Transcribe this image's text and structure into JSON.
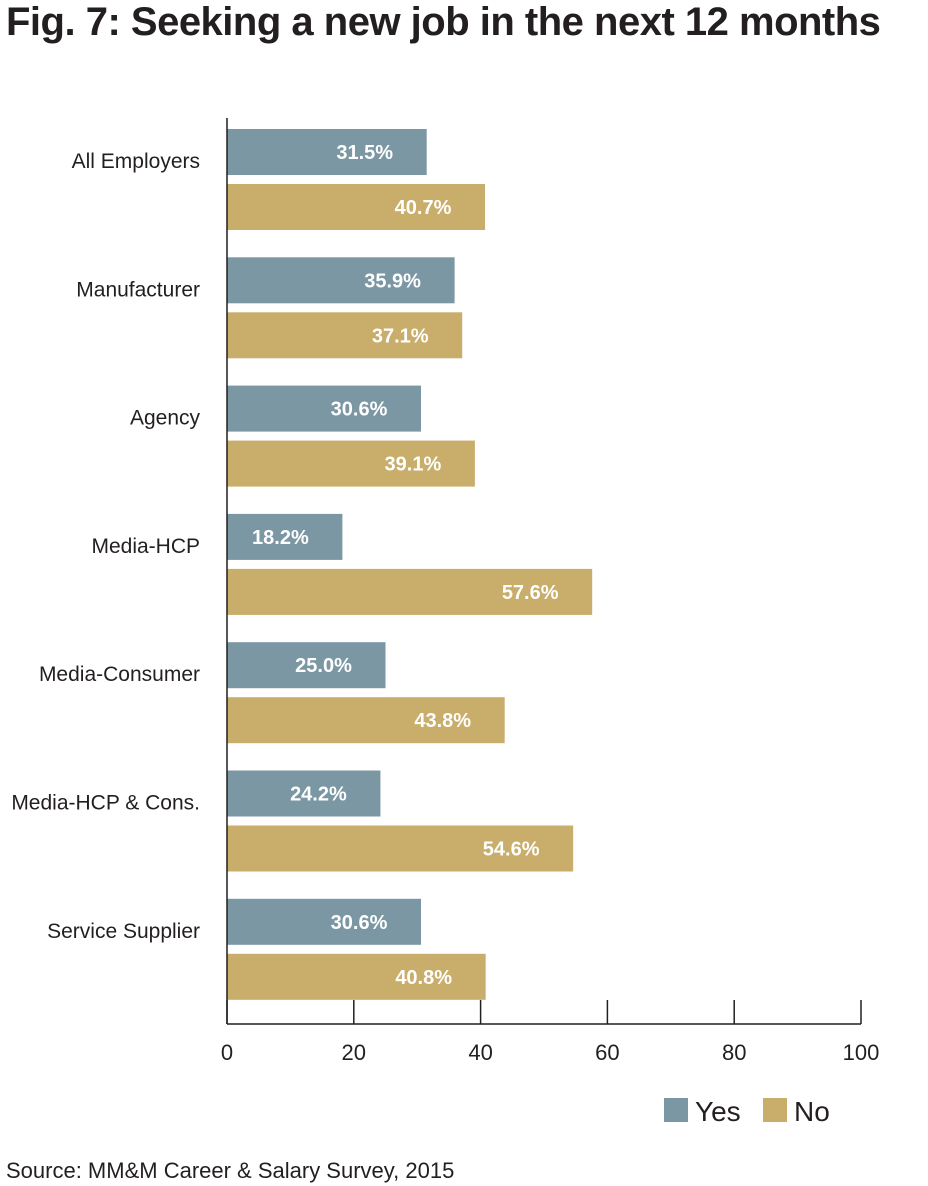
{
  "title": "Fig. 7: Seeking a new job in the next 12 months",
  "source": "Source: MM&M Career & Salary Survey, 2015",
  "colors": {
    "yes": "#7a97a3",
    "no": "#c9ad6a",
    "axis": "#231f20"
  },
  "chart_data": {
    "type": "bar",
    "orientation": "horizontal",
    "categories": [
      "All Employers",
      "Manufacturer",
      "Agency",
      "Media-HCP",
      "Media-Consumer",
      "Media-HCP & Cons.",
      "Service Supplier"
    ],
    "series": [
      {
        "name": "Yes",
        "values": [
          31.5,
          35.9,
          30.6,
          18.2,
          25.0,
          24.2,
          30.6
        ],
        "labels": [
          "31.5%",
          "35.9%",
          "30.6%",
          "18.2%",
          "25.0%",
          "24.2%",
          "30.6%"
        ]
      },
      {
        "name": "No",
        "values": [
          40.7,
          37.1,
          39.1,
          57.6,
          43.8,
          54.6,
          40.8
        ],
        "labels": [
          "40.7%",
          "37.1%",
          "39.1%",
          "57.6%",
          "43.8%",
          "54.6%",
          "40.8%"
        ]
      }
    ],
    "xlim": [
      0,
      100
    ],
    "xticks": [
      0,
      20,
      40,
      60,
      80,
      100
    ],
    "xtick_labels": [
      "0",
      "20",
      "40",
      "60",
      "80",
      "100"
    ],
    "legend_position": "bottom-right",
    "grid": false
  }
}
